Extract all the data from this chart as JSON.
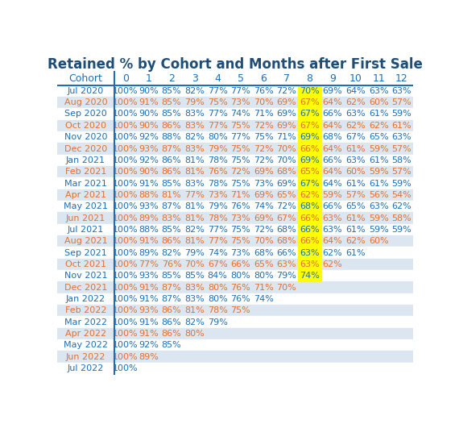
{
  "title": "Retained % by Cohort and Months after First Sale",
  "title_color": "#1e4d78",
  "header_cols": [
    "Cohort",
    "0",
    "1",
    "2",
    "3",
    "4",
    "5",
    "6",
    "7",
    "8",
    "9",
    "10",
    "11",
    "12"
  ],
  "cohorts": [
    "Jul 2020",
    "Aug 2020",
    "Sep 2020",
    "Oct 2020",
    "Nov 2020",
    "Dec 2020",
    "Jan 2021",
    "Feb 2021",
    "Mar 2021",
    "Apr 2021",
    "May 2021",
    "Jun 2021",
    "Jul 2021",
    "Aug 2021",
    "Sep 2021",
    "Oct 2021",
    "Nov 2021",
    "Dec 2021",
    "Jan 2022",
    "Feb 2022",
    "Mar 2022",
    "Apr 2022",
    "May 2022",
    "Jun 2022",
    "Jul 2022"
  ],
  "data": [
    [
      100,
      90,
      85,
      82,
      77,
      77,
      76,
      72,
      70,
      69,
      64,
      63,
      63
    ],
    [
      100,
      91,
      85,
      79,
      75,
      73,
      70,
      69,
      67,
      64,
      62,
      60,
      57
    ],
    [
      100,
      90,
      85,
      83,
      77,
      74,
      71,
      69,
      67,
      66,
      63,
      61,
      59
    ],
    [
      100,
      90,
      86,
      83,
      77,
      75,
      72,
      69,
      67,
      64,
      62,
      62,
      61
    ],
    [
      100,
      92,
      88,
      82,
      80,
      77,
      75,
      71,
      69,
      68,
      67,
      65,
      63
    ],
    [
      100,
      93,
      87,
      83,
      79,
      75,
      72,
      70,
      66,
      64,
      61,
      59,
      57
    ],
    [
      100,
      92,
      86,
      81,
      78,
      75,
      72,
      70,
      69,
      66,
      63,
      61,
      58
    ],
    [
      100,
      90,
      86,
      81,
      76,
      72,
      69,
      68,
      65,
      64,
      60,
      59,
      57
    ],
    [
      100,
      91,
      85,
      83,
      78,
      75,
      73,
      69,
      67,
      64,
      61,
      61,
      59
    ],
    [
      100,
      88,
      81,
      77,
      73,
      71,
      69,
      65,
      62,
      59,
      57,
      56,
      54
    ],
    [
      100,
      93,
      87,
      81,
      79,
      76,
      74,
      72,
      68,
      66,
      65,
      63,
      62
    ],
    [
      100,
      89,
      83,
      81,
      78,
      73,
      69,
      67,
      66,
      63,
      61,
      59,
      58
    ],
    [
      100,
      88,
      85,
      82,
      77,
      75,
      72,
      68,
      66,
      63,
      61,
      59,
      59
    ],
    [
      100,
      91,
      86,
      81,
      77,
      75,
      70,
      68,
      66,
      64,
      62,
      60,
      null
    ],
    [
      100,
      89,
      82,
      79,
      74,
      73,
      68,
      66,
      63,
      62,
      61,
      null,
      null
    ],
    [
      100,
      77,
      76,
      70,
      67,
      66,
      65,
      63,
      63,
      62,
      null,
      null,
      null
    ],
    [
      100,
      93,
      85,
      85,
      84,
      80,
      80,
      79,
      74,
      null,
      null,
      null,
      null
    ],
    [
      100,
      91,
      87,
      83,
      80,
      76,
      71,
      70,
      null,
      null,
      null,
      null,
      null
    ],
    [
      100,
      91,
      87,
      83,
      80,
      76,
      74,
      null,
      null,
      null,
      null,
      null,
      null
    ],
    [
      100,
      93,
      86,
      81,
      78,
      75,
      null,
      null,
      null,
      null,
      null,
      null,
      null
    ],
    [
      100,
      91,
      86,
      82,
      79,
      null,
      null,
      null,
      null,
      null,
      null,
      null,
      null
    ],
    [
      100,
      91,
      86,
      80,
      null,
      null,
      null,
      null,
      null,
      null,
      null,
      null,
      null
    ],
    [
      100,
      92,
      85,
      null,
      null,
      null,
      null,
      null,
      null,
      null,
      null,
      null,
      null
    ],
    [
      100,
      89,
      null,
      null,
      null,
      null,
      null,
      null,
      null,
      null,
      null,
      null,
      null
    ],
    [
      100,
      null,
      null,
      null,
      null,
      null,
      null,
      null,
      null,
      null,
      null,
      null,
      null
    ]
  ],
  "orange_rows": [
    1,
    3,
    5,
    7,
    9,
    11,
    13,
    15,
    17,
    19,
    21,
    23
  ],
  "blue_text_color": "#1e6eb5",
  "orange_text_color": "#e07030",
  "highlight_col": 8,
  "highlight_color": "#ffff00",
  "bg_color_even": "#ffffff",
  "bg_color_odd": "#dce6f1",
  "separator_color": "#1e6eb5",
  "title_fontsize": 12,
  "header_fontsize": 9,
  "cell_fontsize": 8
}
